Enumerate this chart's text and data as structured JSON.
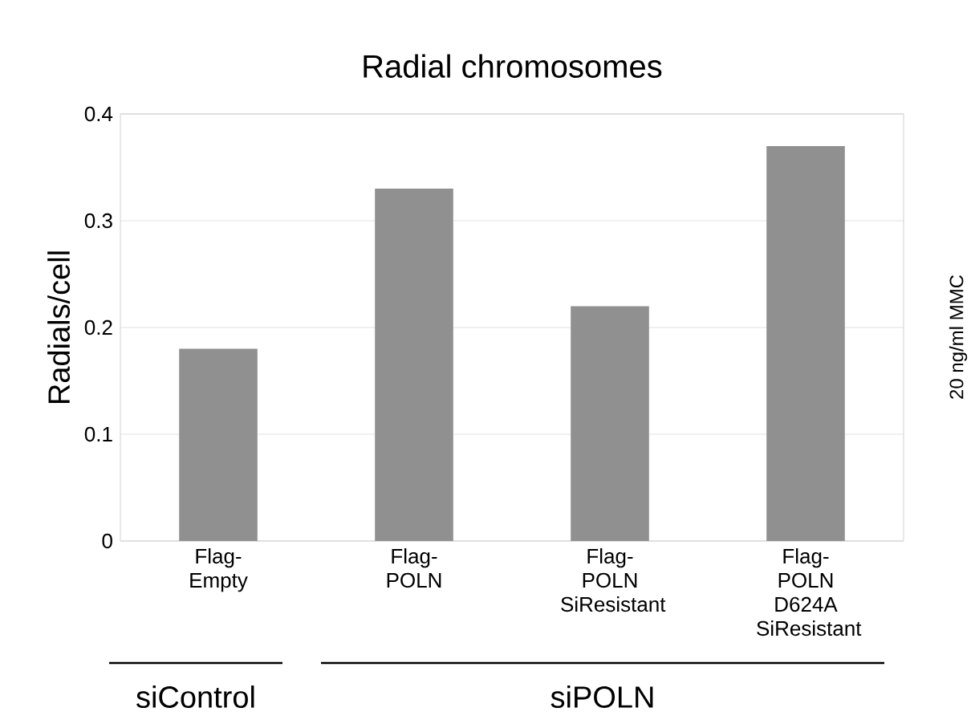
{
  "chart_data": {
    "type": "bar",
    "title": "Radial chromosomes",
    "ylabel": "Radials/cell",
    "categories": [
      "Flag-Empty",
      "Flag-POLN",
      "Flag-POLN SiResistant",
      "Flag-POLN D624A SiResistant"
    ],
    "values": [
      0.18,
      0.33,
      0.22,
      0.37
    ],
    "color": "#909090",
    "ylim": [
      0,
      0.4
    ],
    "yticks": [
      0,
      0.1,
      0.2,
      0.3,
      0.4
    ],
    "grid": "y",
    "annotations": [
      "siControl",
      "siPOLN",
      "20 ng/ml MMC"
    ]
  }
}
